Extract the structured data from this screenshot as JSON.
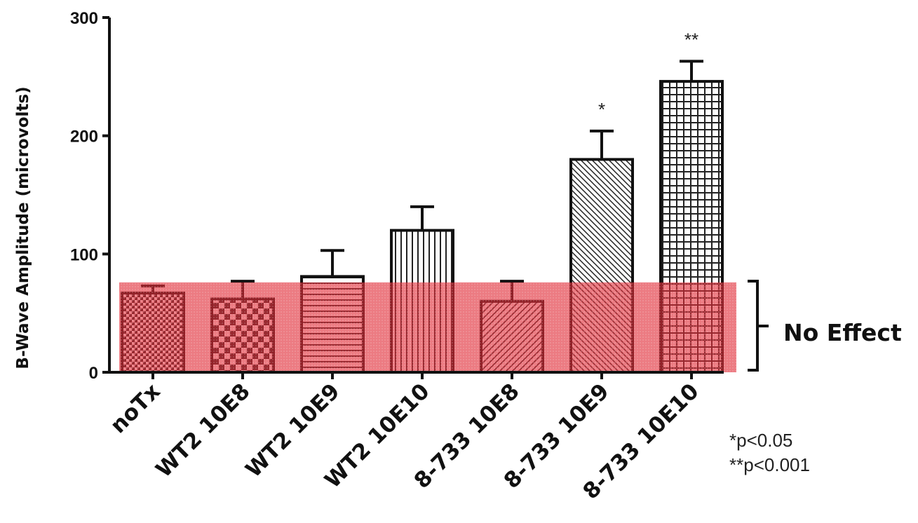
{
  "chart_data": {
    "type": "bar",
    "title": "",
    "xlabel": "",
    "ylabel": "B-Wave Amplitude (microvolts)",
    "ylim": [
      0,
      300
    ],
    "yticks": [
      0,
      100,
      200,
      300
    ],
    "categories": [
      "noTx",
      "WT2 10E8",
      "WT2 10E9",
      "WT2 10E10",
      "8-733 10E8",
      "8-733 10E9",
      "8-733 10E10"
    ],
    "values": [
      67,
      62,
      81,
      120,
      60,
      180,
      246
    ],
    "error": [
      6,
      15,
      22,
      20,
      17,
      24,
      17
    ],
    "significance": [
      "",
      "",
      "",
      "",
      "",
      "*",
      "**"
    ],
    "patterns": [
      "fine-check",
      "checkerboard",
      "horizontal",
      "vertical",
      "diagonal-up",
      "diagonal-down",
      "grid"
    ],
    "grid": false,
    "band": {
      "label": "No Effect",
      "range": [
        0,
        76
      ],
      "color": "#e0303c"
    },
    "notes": [
      "*p<0.05",
      "**p<0.001"
    ]
  }
}
